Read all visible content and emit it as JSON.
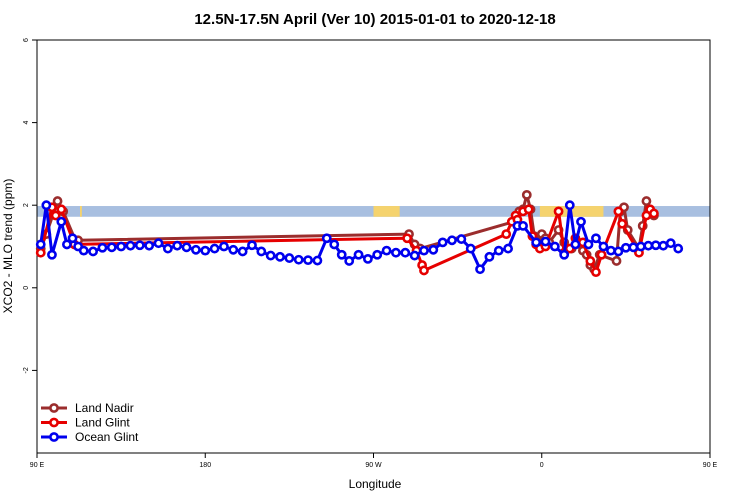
{
  "chart_data": {
    "type": "line",
    "title": "12.5N-17.5N April (Ver 10)   2015-01-01 to 2020-12-18",
    "xlabel": "Longitude",
    "ylabel": "XCO2 - MLO trend (ppm)",
    "xlim": [
      90,
      450
    ],
    "ylim": [
      -4,
      6
    ],
    "x_ticks": [
      {
        "value": 90,
        "label": "90 E"
      },
      {
        "value": 180,
        "label": "180"
      },
      {
        "value": 270,
        "label": "90 W"
      },
      {
        "value": 360,
        "label": "0"
      },
      {
        "value": 450,
        "label": "90 E"
      },
      {
        "value": 540,
        "label": "180"
      }
    ],
    "y_ticks": [
      {
        "value": -2,
        "label": "-2"
      },
      {
        "value": 0,
        "label": "0"
      },
      {
        "value": 2,
        "label": "2"
      },
      {
        "value": 4,
        "label": "4"
      },
      {
        "value": 6,
        "label": "6"
      }
    ],
    "legend_position": "bottom-left",
    "surface_band": {
      "y_range": [
        1.72,
        1.98
      ],
      "ocean_color": "#a8bfe0",
      "land_color": "#f5d36e",
      "land_segments": [
        [
          113,
          114
        ],
        [
          270,
          284
        ],
        [
          359,
          393
        ],
        [
          418,
          420
        ],
        [
          455,
          456
        ]
      ]
    },
    "series": [
      {
        "name": "Land Nadir",
        "color": "#9b2d2d",
        "points": [
          [
            92,
            0.95
          ],
          [
            95,
            1.3
          ],
          [
            101,
            2.1
          ],
          [
            104,
            1.85
          ],
          [
            111,
            1.1
          ],
          [
            112,
            1.15
          ],
          [
            289,
            1.3
          ],
          [
            292,
            1.05
          ],
          [
            295,
            0.95
          ],
          [
            345,
            1.6
          ],
          [
            348,
            1.85
          ],
          [
            350,
            1.9
          ],
          [
            352,
            2.25
          ],
          [
            354,
            1.9
          ],
          [
            356,
            1.25
          ],
          [
            358,
            1.1
          ],
          [
            360,
            1.3
          ],
          [
            362,
            1.2
          ],
          [
            364,
            1.1
          ],
          [
            369,
            1.4
          ],
          [
            372,
            1.1
          ],
          [
            376,
            0.95
          ],
          [
            378,
            1.05
          ],
          [
            382,
            0.9
          ],
          [
            384,
            0.8
          ],
          [
            386,
            0.55
          ],
          [
            388,
            0.45
          ],
          [
            391,
            0.8
          ],
          [
            400,
            0.65
          ],
          [
            402,
            1.85
          ],
          [
            404,
            1.95
          ],
          [
            406,
            1.4
          ],
          [
            412,
            0.95
          ],
          [
            414,
            1.5
          ],
          [
            416,
            2.1
          ],
          [
            418,
            1.85
          ],
          [
            420,
            1.75
          ]
        ]
      },
      {
        "name": "Land Glint",
        "color": "#e60000",
        "points": [
          [
            92,
            0.85
          ],
          [
            98,
            1.95
          ],
          [
            100,
            1.75
          ],
          [
            103,
            1.9
          ],
          [
            110,
            1.05
          ],
          [
            288,
            1.2
          ],
          [
            293,
            0.9
          ],
          [
            296,
            0.55
          ],
          [
            297,
            0.42
          ],
          [
            341,
            1.3
          ],
          [
            344,
            1.6
          ],
          [
            346,
            1.75
          ],
          [
            347,
            1.65
          ],
          [
            350,
            1.85
          ],
          [
            353,
            1.9
          ],
          [
            355,
            1.25
          ],
          [
            357,
            1.05
          ],
          [
            359,
            0.95
          ],
          [
            362,
            1.0
          ],
          [
            369,
            1.85
          ],
          [
            372,
            0.85
          ],
          [
            375,
            0.95
          ],
          [
            378,
            1.2
          ],
          [
            382,
            1.1
          ],
          [
            386,
            0.65
          ],
          [
            389,
            0.38
          ],
          [
            392,
            0.8
          ],
          [
            401,
            1.85
          ],
          [
            403,
            1.55
          ],
          [
            412,
            0.85
          ],
          [
            416,
            1.75
          ],
          [
            418,
            1.9
          ],
          [
            420,
            1.8
          ]
        ]
      },
      {
        "name": "Ocean Glint",
        "color": "#0000ee",
        "points": [
          [
            92,
            1.05
          ],
          [
            95,
            2.0
          ],
          [
            98,
            0.8
          ],
          [
            103,
            1.6
          ],
          [
            106,
            1.05
          ],
          [
            109,
            1.2
          ],
          [
            112,
            1.0
          ],
          [
            115,
            0.9
          ],
          [
            120,
            0.88
          ],
          [
            125,
            0.97
          ],
          [
            130,
            0.98
          ],
          [
            135,
            1.0
          ],
          [
            140,
            1.02
          ],
          [
            145,
            1.03
          ],
          [
            150,
            1.02
          ],
          [
            155,
            1.08
          ],
          [
            160,
            0.95
          ],
          [
            165,
            1.02
          ],
          [
            170,
            0.98
          ],
          [
            175,
            0.92
          ],
          [
            180,
            0.9
          ],
          [
            185,
            0.95
          ],
          [
            190,
            1.0
          ],
          [
            195,
            0.92
          ],
          [
            200,
            0.88
          ],
          [
            205,
            1.03
          ],
          [
            210,
            0.88
          ],
          [
            215,
            0.78
          ],
          [
            220,
            0.75
          ],
          [
            225,
            0.72
          ],
          [
            230,
            0.68
          ],
          [
            235,
            0.67
          ],
          [
            240,
            0.66
          ],
          [
            245,
            1.2
          ],
          [
            249,
            1.05
          ],
          [
            253,
            0.8
          ],
          [
            257,
            0.65
          ],
          [
            262,
            0.8
          ],
          [
            267,
            0.7
          ],
          [
            272,
            0.8
          ],
          [
            277,
            0.9
          ],
          [
            282,
            0.85
          ],
          [
            287,
            0.85
          ],
          [
            292,
            0.78
          ],
          [
            297,
            0.9
          ],
          [
            302,
            0.92
          ],
          [
            307,
            1.1
          ],
          [
            312,
            1.15
          ],
          [
            317,
            1.18
          ],
          [
            322,
            0.95
          ],
          [
            327,
            0.45
          ],
          [
            332,
            0.75
          ],
          [
            337,
            0.9
          ],
          [
            342,
            0.95
          ],
          [
            347,
            1.5
          ],
          [
            350,
            1.5
          ],
          [
            357,
            1.1
          ],
          [
            362,
            1.12
          ],
          [
            367,
            1.0
          ],
          [
            372,
            0.8
          ],
          [
            375,
            2.0
          ],
          [
            378,
            1.05
          ],
          [
            381,
            1.6
          ],
          [
            385,
            1.05
          ],
          [
            389,
            1.2
          ],
          [
            393,
            1.0
          ],
          [
            397,
            0.9
          ],
          [
            401,
            0.88
          ],
          [
            405,
            0.97
          ],
          [
            409,
            0.98
          ],
          [
            413,
            1.0
          ],
          [
            417,
            1.02
          ],
          [
            421,
            1.03
          ],
          [
            425,
            1.02
          ],
          [
            429,
            1.08
          ],
          [
            433,
            0.95
          ]
        ]
      }
    ]
  }
}
